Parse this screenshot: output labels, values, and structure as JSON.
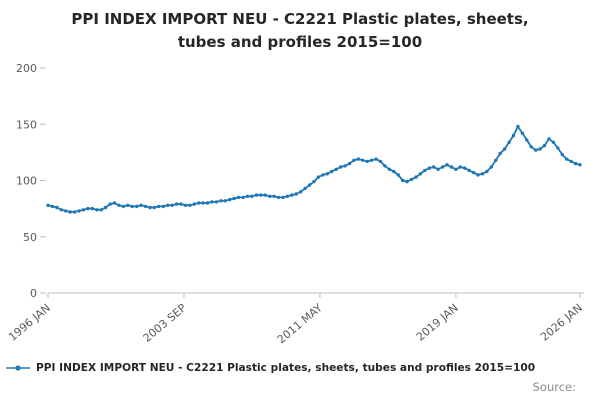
{
  "title": {
    "line1": "PPI INDEX IMPORT NEU - C2221 Plastic plates, sheets,",
    "line2": "tubes and profiles 2015=100"
  },
  "legend": {
    "label": "PPI INDEX IMPORT NEU - C2221 Plastic plates, sheets, tubes and profiles 2015=100"
  },
  "source": {
    "label": "Source:"
  },
  "colors": {
    "series": "#1f77b4",
    "axis": "#bdbdbd",
    "tick_text": "#595959",
    "title_text": "#262626",
    "source_text": "#8c8c8c"
  },
  "chart_data": {
    "type": "line",
    "title": "PPI INDEX IMPORT NEU - C2221 Plastic plates, sheets, tubes and profiles 2015=100",
    "xlabel": "",
    "ylabel": "",
    "y_ticks": [
      0,
      50,
      100,
      150,
      200
    ],
    "ylim": [
      0,
      210
    ],
    "grid": false,
    "legend_position": "bottom-left",
    "x_tick_labels": [
      "1996 JAN",
      "2003 SEP",
      "2011 MAY",
      "2019 JAN",
      "2026 JAN"
    ],
    "x_tick_month_offsets": [
      0,
      92,
      184,
      276,
      360
    ],
    "x_total_months": 360,
    "series": [
      {
        "name": "PPI INDEX IMPORT NEU - C2221 Plastic plates, sheets, tubes and profiles 2015=100",
        "values": [
          78,
          77,
          76,
          74,
          73,
          72,
          72,
          73,
          74,
          75,
          75,
          74,
          74,
          76,
          79,
          80,
          78,
          77,
          78,
          77,
          77,
          78,
          77,
          76,
          76,
          77,
          77,
          78,
          78,
          79,
          79,
          78,
          78,
          79,
          80,
          80,
          80,
          81,
          81,
          82,
          82,
          83,
          84,
          85,
          85,
          86,
          86,
          87,
          87,
          87,
          86,
          86,
          85,
          85,
          86,
          87,
          88,
          90,
          93,
          96,
          99,
          103,
          105,
          106,
          108,
          110,
          112,
          113,
          115,
          118,
          119,
          118,
          117,
          118,
          119,
          117,
          113,
          110,
          108,
          105,
          100,
          99,
          101,
          103,
          106,
          109,
          111,
          112,
          110,
          112,
          114,
          112,
          110,
          112,
          111,
          109,
          107,
          105,
          106,
          108,
          112,
          118,
          124,
          128,
          134,
          140,
          148,
          142,
          136,
          130,
          127,
          128,
          131,
          137,
          134,
          129,
          123,
          119,
          117,
          115,
          114
        ]
      }
    ]
  }
}
